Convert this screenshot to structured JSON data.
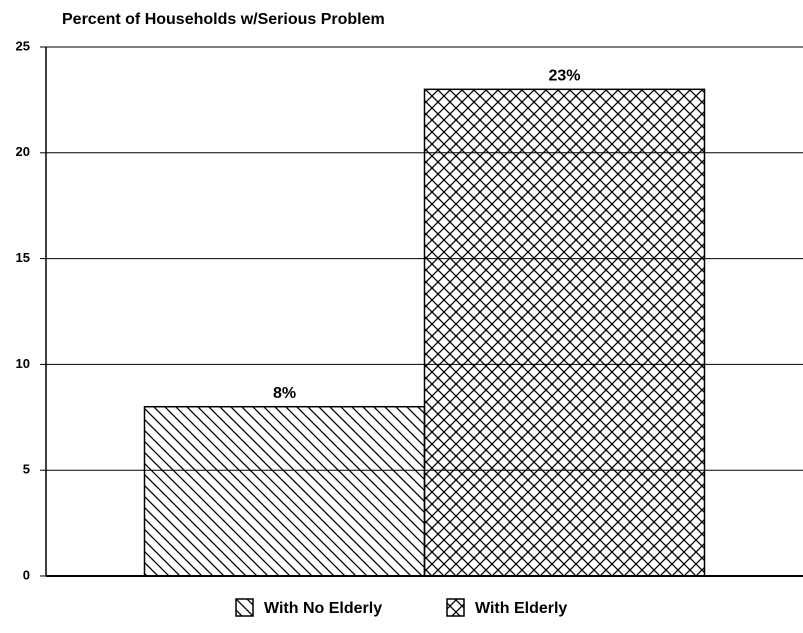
{
  "chart_data": {
    "type": "bar",
    "title": "Percent of Households w/Serious Problem",
    "categories": [
      null
    ],
    "series": [
      {
        "name": "With No Elderly",
        "color": "#000000",
        "pattern": "diagonal",
        "values": [
          8
        ],
        "value_labels": [
          "8%"
        ]
      },
      {
        "name": "With Elderly",
        "color": "#000000",
        "pattern": "crosshatch",
        "values": [
          23
        ],
        "value_labels": [
          "23%"
        ]
      }
    ],
    "ylim": [
      0,
      25
    ],
    "yticks": [
      0,
      5,
      10,
      15,
      20,
      25
    ],
    "grid": true,
    "legend": "bottom"
  }
}
